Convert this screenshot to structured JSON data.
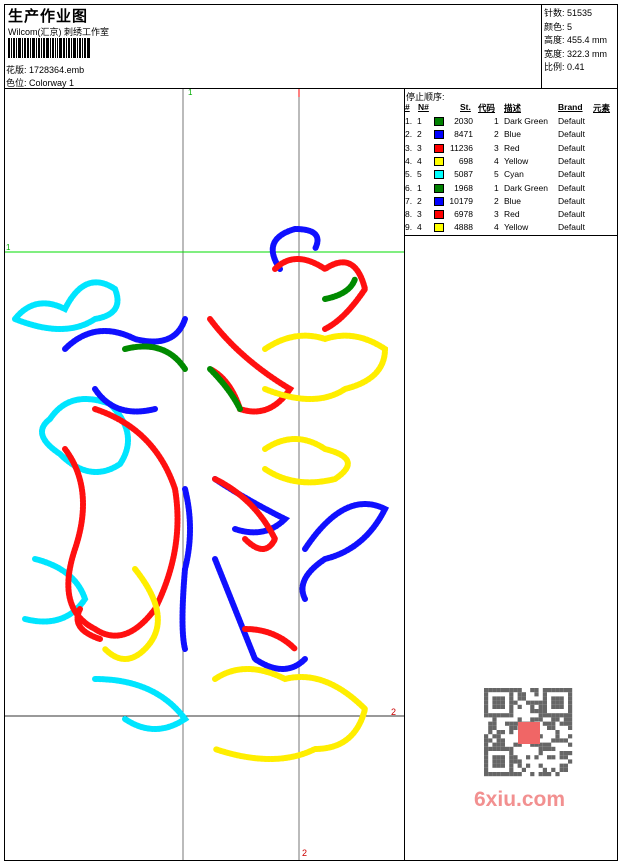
{
  "header": {
    "title": "生产作业图",
    "company": "Wilcom(汇京) 刺绣工作室",
    "design_label": "花版:",
    "design_file": "1728364.emb",
    "colorway_label": "色位:",
    "colorway": "Colorway 1"
  },
  "stats": [
    {
      "label": "针数:",
      "value": "51535"
    },
    {
      "label": "颜色:",
      "value": "5"
    },
    {
      "label": "高度:",
      "value": "455.4 mm"
    },
    {
      "label": "宽度:",
      "value": "322.3 mm"
    },
    {
      "label": "比例:",
      "value": "0.41"
    }
  ],
  "stop_sequence": {
    "caption": "停止顺序:",
    "columns": [
      "#",
      "N#",
      "St.",
      "代码",
      "描述",
      "Brand",
      "元素"
    ],
    "rows": [
      {
        "n": "1.",
        "code_no": "1",
        "color": "#008000",
        "st": "2030",
        "code": "1",
        "desc": "Dark Green",
        "brand": "Default"
      },
      {
        "n": "2.",
        "code_no": "2",
        "color": "#0000ff",
        "st": "8471",
        "code": "2",
        "desc": "Blue",
        "brand": "Default"
      },
      {
        "n": "3.",
        "code_no": "3",
        "color": "#ff0000",
        "st": "11236",
        "code": "3",
        "desc": "Red",
        "brand": "Default"
      },
      {
        "n": "4.",
        "code_no": "4",
        "color": "#ffff00",
        "st": "698",
        "code": "4",
        "desc": "Yellow",
        "brand": "Default"
      },
      {
        "n": "5.",
        "code_no": "5",
        "color": "#00ffff",
        "st": "5087",
        "code": "5",
        "desc": "Cyan",
        "brand": "Default"
      },
      {
        "n": "6.",
        "code_no": "1",
        "color": "#008000",
        "st": "1968",
        "code": "1",
        "desc": "Dark Green",
        "brand": "Default"
      },
      {
        "n": "7.",
        "code_no": "2",
        "color": "#0000ff",
        "st": "10179",
        "code": "2",
        "desc": "Blue",
        "brand": "Default"
      },
      {
        "n": "8.",
        "code_no": "3",
        "color": "#ff0000",
        "st": "6978",
        "code": "3",
        "desc": "Red",
        "brand": "Default"
      },
      {
        "n": "9.",
        "code_no": "4",
        "color": "#ffff00",
        "st": "4888",
        "code": "4",
        "desc": "Yellow",
        "brand": "Default"
      }
    ]
  },
  "guides": {
    "top_v": "1",
    "left_h": "1",
    "right_h": "2",
    "bottom_v": "2"
  },
  "watermark": {
    "text": "6xiu.com"
  }
}
